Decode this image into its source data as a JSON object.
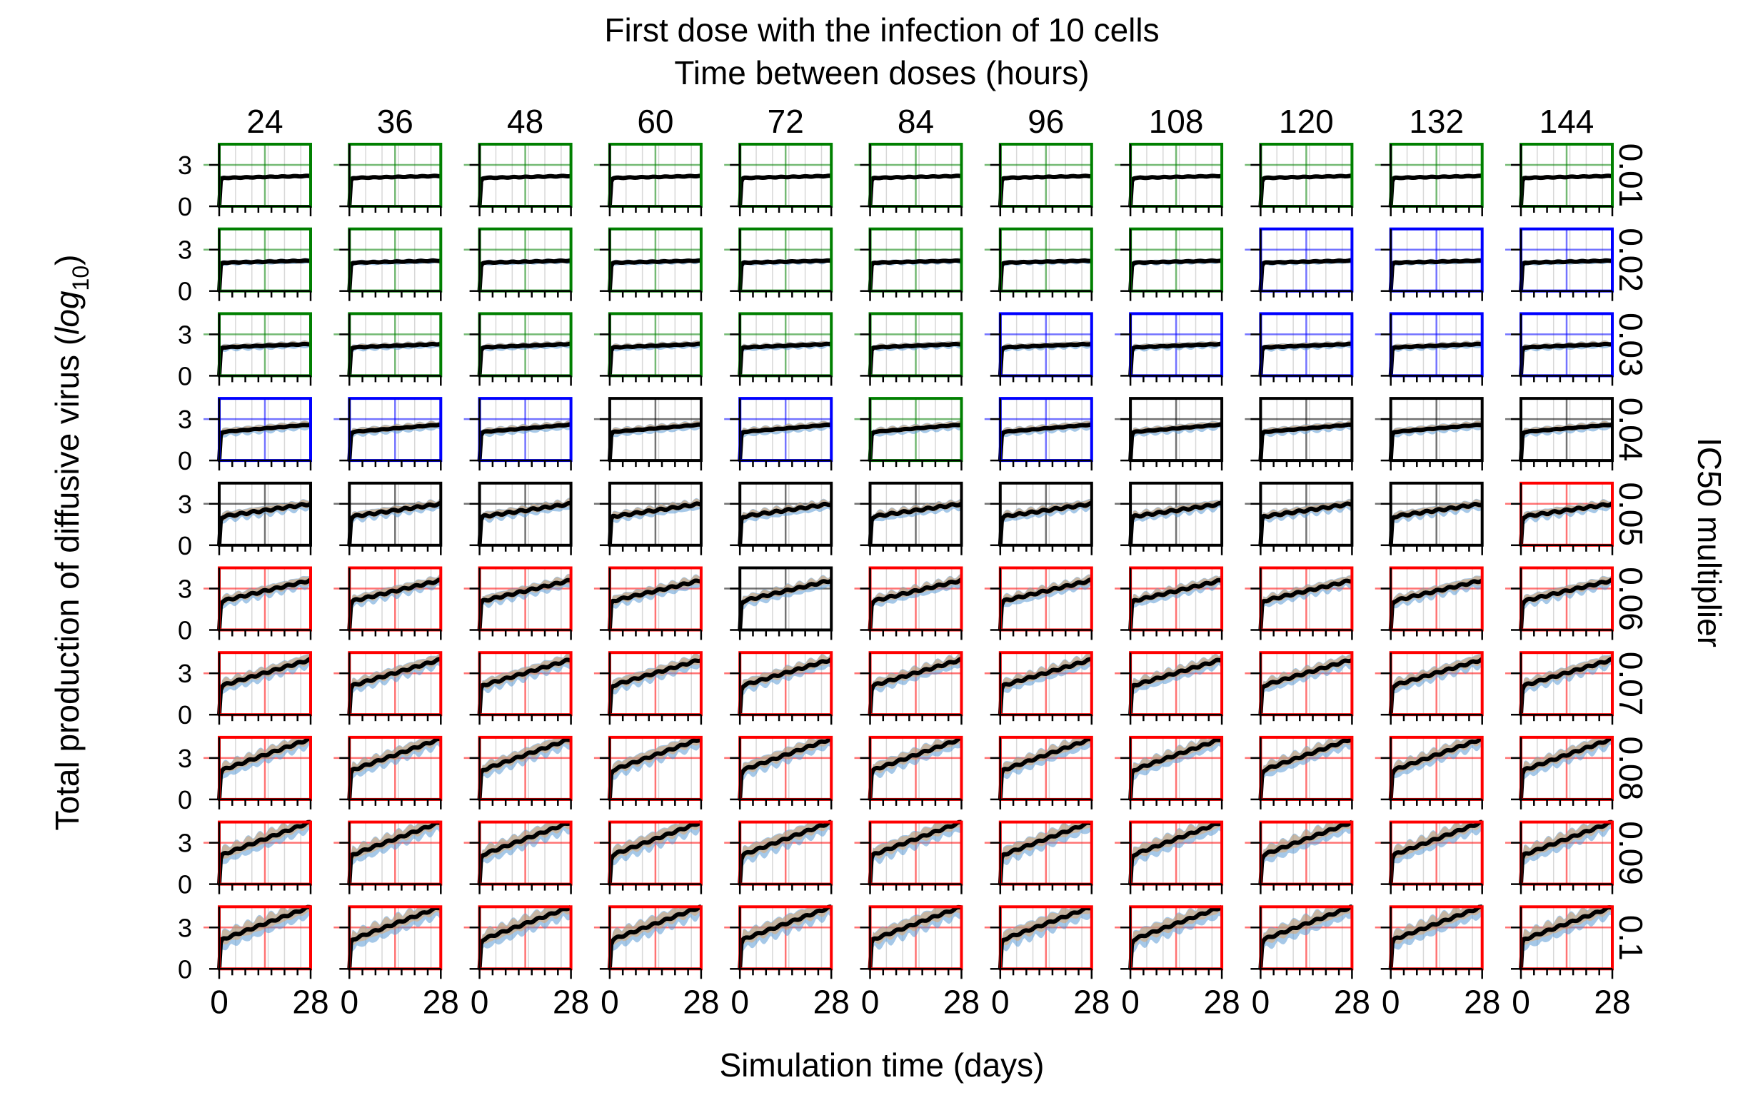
{
  "chart_data": {
    "type": "line",
    "title": "First dose with the infection of 10 cells",
    "subtitle": "Time between doses (hours)",
    "xlabel": "Simulation time (days)",
    "ylabel_main": "Total production of diffusive virus (",
    "ylabel_log": "log",
    "ylabel_sub": "10",
    "ylabel_close": ")",
    "right_label": "IC50 multiplier",
    "columns": [
      "24",
      "36",
      "48",
      "60",
      "72",
      "84",
      "96",
      "108",
      "120",
      "132",
      "144"
    ],
    "rows": [
      "0.01",
      "0.02",
      "0.03",
      "0.04",
      "0.05",
      "0.06",
      "0.07",
      "0.08",
      "0.09",
      "0.1"
    ],
    "xlim": [
      0,
      28
    ],
    "ylim": [
      0,
      4.5
    ],
    "x_ticklabels": [
      "0",
      "28"
    ],
    "y_ticklabels": [
      "0",
      "3"
    ],
    "frame_color_legend": {
      "g": "#008000",
      "b": "#0000ff",
      "k": "#000000",
      "r": "#ff0000"
    },
    "panel_frame_colors": [
      [
        "g",
        "g",
        "g",
        "g",
        "g",
        "g",
        "g",
        "g",
        "g",
        "g",
        "g"
      ],
      [
        "g",
        "g",
        "g",
        "g",
        "g",
        "g",
        "g",
        "g",
        "b",
        "b",
        "b"
      ],
      [
        "g",
        "g",
        "g",
        "g",
        "g",
        "g",
        "b",
        "b",
        "b",
        "b",
        "b"
      ],
      [
        "b",
        "b",
        "b",
        "k",
        "b",
        "g",
        "b",
        "k",
        "k",
        "k",
        "k"
      ],
      [
        "k",
        "k",
        "k",
        "k",
        "k",
        "k",
        "k",
        "k",
        "k",
        "k",
        "r"
      ],
      [
        "r",
        "r",
        "r",
        "r",
        "k",
        "r",
        "r",
        "r",
        "r",
        "r",
        "r"
      ],
      [
        "r",
        "r",
        "r",
        "r",
        "r",
        "r",
        "r",
        "r",
        "r",
        "r",
        "r"
      ],
      [
        "r",
        "r",
        "r",
        "r",
        "r",
        "r",
        "r",
        "r",
        "r",
        "r",
        "r"
      ],
      [
        "r",
        "r",
        "r",
        "r",
        "r",
        "r",
        "r",
        "r",
        "r",
        "r",
        "r"
      ],
      [
        "r",
        "r",
        "r",
        "r",
        "r",
        "r",
        "r",
        "r",
        "r",
        "r",
        "r"
      ]
    ],
    "mean_curve_shape": "rapid rise to ~2 within day 1, then row-dependent plateau/slope",
    "approx_value_at_day28_by_row": [
      "2.2",
      "2.2",
      "2.3",
      "2.6",
      "3.0",
      "3.6",
      "4.0",
      "4.4",
      "4.5",
      "4.5"
    ],
    "series": [
      {
        "name": "replicate band 1",
        "color": "#5b9bd5"
      },
      {
        "name": "replicate band 2",
        "color": "#f0a050"
      },
      {
        "name": "mean",
        "color": "#000000"
      }
    ]
  }
}
